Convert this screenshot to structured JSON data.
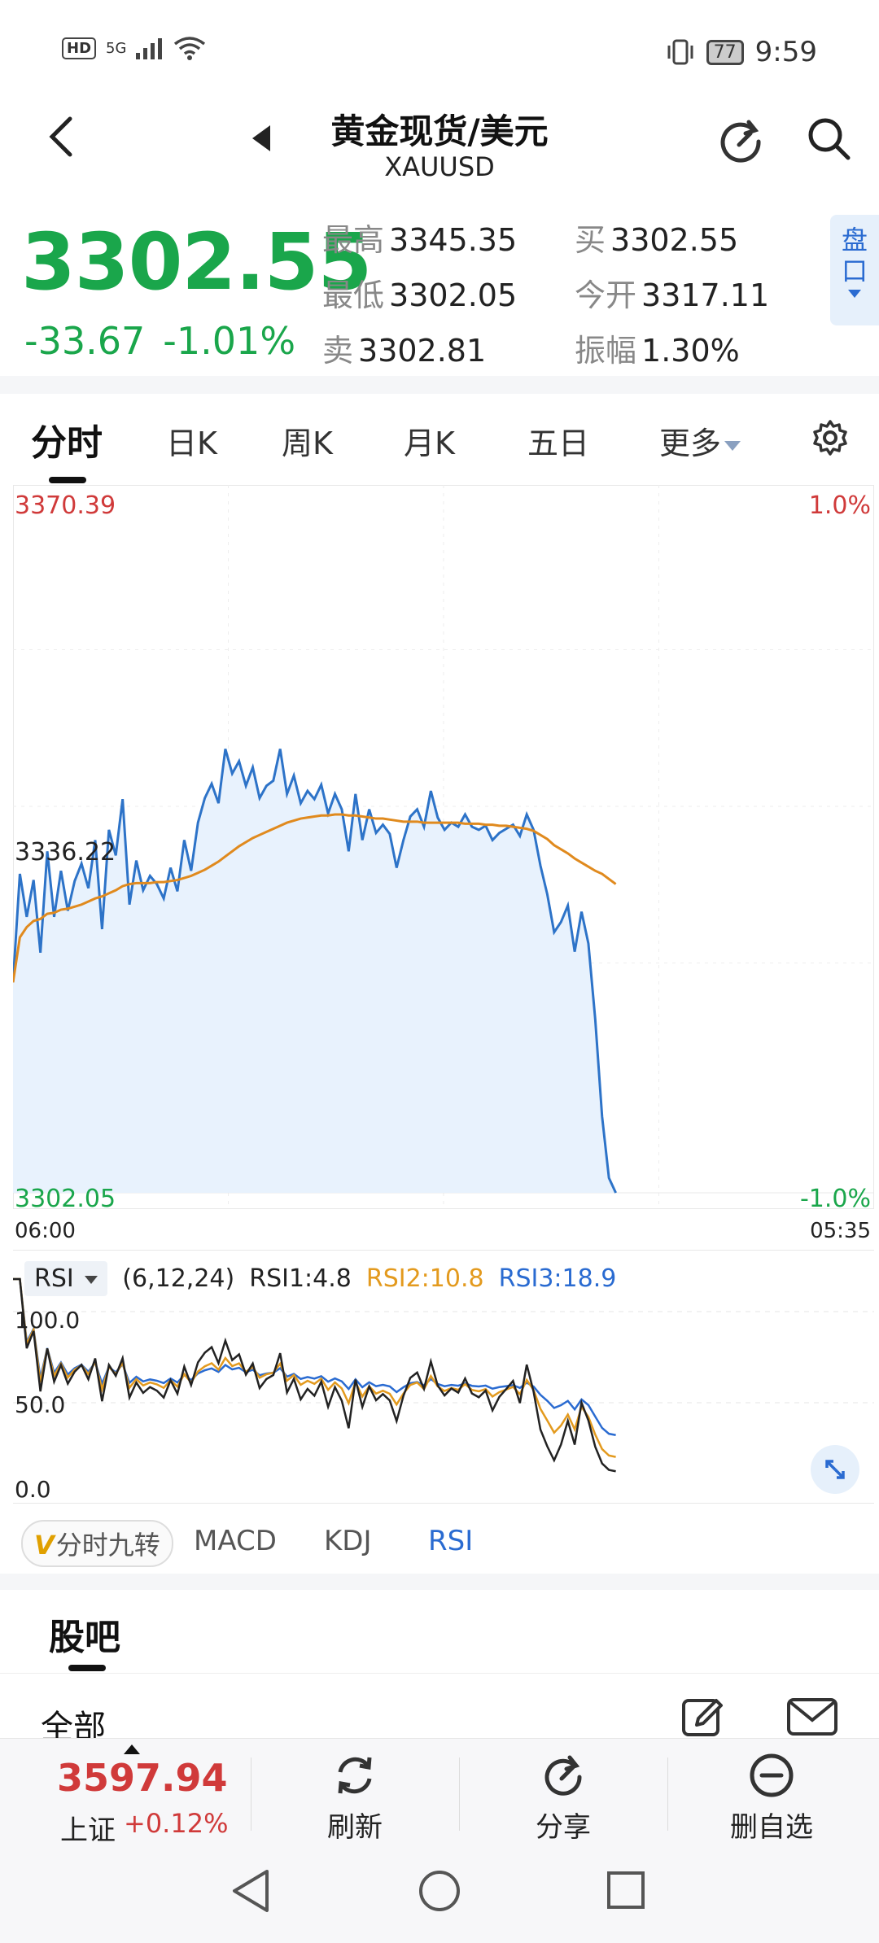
{
  "status_bar": {
    "network": "HD",
    "signal": "5G",
    "battery": "77",
    "time": "9:59"
  },
  "header": {
    "title": "黄金现货/美元",
    "subtitle": "XAUUSD"
  },
  "quote": {
    "price": "3302.55",
    "change": "-33.67",
    "change_pct": "-1.01%",
    "high_label": "最高",
    "high": "3345.35",
    "low_label": "最低",
    "low": "3302.05",
    "sell_label": "卖",
    "sell": "3302.81",
    "buy_label": "买",
    "buy": "3302.55",
    "open_label": "今开",
    "open": "3317.11",
    "amp_label": "振幅",
    "amp": "1.30%",
    "pankou_label": "盘口"
  },
  "tabs": [
    "分时",
    "日K",
    "周K",
    "月K",
    "五日",
    "更多"
  ],
  "chart_data": {
    "type": "line",
    "title": "",
    "y_max_label": "3370.39",
    "y_mid_label": "3336.22",
    "y_min_label": "3302.05",
    "pct_max_label": "1.0%",
    "pct_min_label": "-1.0%",
    "x_start_label": "06:00",
    "x_end_label": "05:35",
    "ylim": [
      3302.05,
      3370.39
    ],
    "series": [
      {
        "values": [
          3322.6,
          3333.2,
          3329.0,
          3332.6,
          3325.5,
          3335.4,
          3329.0,
          3333.5,
          3329.6,
          3332.5,
          3334.2,
          3331.8,
          3336.5,
          3327.8,
          3337.5,
          3335.0,
          3340.5,
          3330.2,
          3334.5,
          3331.6,
          3333.0,
          3332.2,
          3330.8,
          3333.8,
          3331.5,
          3336.5,
          3333.5,
          3338.2,
          3340.6,
          3342.0,
          3340.1,
          3345.4,
          3343.0,
          3344.2,
          3341.8,
          3343.6,
          3340.6,
          3341.8,
          3342.3,
          3345.4,
          3341.0,
          3342.8,
          3340.1,
          3341.3,
          3340.5,
          3341.9,
          3339.1,
          3341.0,
          3339.5,
          3335.4,
          3341.0,
          3336.5,
          3339.5,
          3337.2,
          3338.0,
          3337.1,
          3333.8,
          3336.5,
          3338.8,
          3339.5,
          3337.8,
          3341.3,
          3338.7,
          3337.5,
          3338.2,
          3337.8,
          3339.0,
          3337.8,
          3337.5,
          3337.9,
          3336.5,
          3337.2,
          3337.6,
          3338.0,
          3336.9,
          3339.0,
          3337.5,
          3334.0,
          3331.2,
          3327.5,
          3328.5,
          3330.1,
          3325.6,
          3329.5,
          3326.4,
          3319.0,
          3309.5,
          3303.5,
          3302.05
        ]
      },
      {
        "values": [
          3322.6,
          3327.0,
          3328.0,
          3328.6,
          3328.8,
          3329.3,
          3329.4,
          3329.7,
          3329.8,
          3330.0,
          3330.2,
          3330.5,
          3330.8,
          3331.0,
          3331.3,
          3331.6,
          3332.0,
          3332.2,
          3332.3,
          3332.3,
          3332.3,
          3332.4,
          3332.4,
          3332.5,
          3332.6,
          3332.8,
          3333.0,
          3333.3,
          3333.6,
          3334.0,
          3334.4,
          3334.9,
          3335.4,
          3335.9,
          3336.3,
          3336.7,
          3337.0,
          3337.3,
          3337.6,
          3337.9,
          3338.2,
          3338.4,
          3338.6,
          3338.7,
          3338.8,
          3338.9,
          3338.9,
          3339.0,
          3339.0,
          3338.9,
          3338.9,
          3338.8,
          3338.7,
          3338.6,
          3338.6,
          3338.5,
          3338.4,
          3338.3,
          3338.3,
          3338.3,
          3338.2,
          3338.2,
          3338.2,
          3338.2,
          3338.2,
          3338.2,
          3338.1,
          3338.1,
          3338.1,
          3338.0,
          3338.0,
          3337.9,
          3337.9,
          3337.8,
          3337.7,
          3337.6,
          3337.4,
          3337.0,
          3336.6,
          3336.0,
          3335.6,
          3335.2,
          3334.7,
          3334.3,
          3333.9,
          3333.5,
          3333.2,
          3332.7,
          3332.2
        ]
      }
    ],
    "xlabel": "",
    "ylabel": "",
    "grid": true
  },
  "rsi": {
    "name": "RSI",
    "params": "(6,12,24)",
    "rsi1": "RSI1:4.8",
    "rsi2": "RSI2:10.8",
    "rsi3": "RSI3:18.9",
    "ticks": [
      "100.0",
      "50.0",
      "0.0"
    ],
    "colors": {
      "rsi1": "#222222",
      "rsi2": "#e39a1e",
      "rsi3": "#2a6bd1"
    }
  },
  "indicator_tabs": {
    "v_label": "V",
    "jiuzhuan": "分时九转",
    "macd": "MACD",
    "kdj": "KDJ",
    "rsi": "RSI"
  },
  "community": {
    "title": "股吧",
    "filter": "全部"
  },
  "bottom_bar": {
    "index_value": "3597.94",
    "index_name": "上证",
    "index_pct": "+0.12%",
    "refresh": "刷新",
    "share": "分享",
    "remove": "删自选"
  },
  "colors": {
    "up": "#d03a3a",
    "down": "#1aa64b",
    "accent": "#2a6bd1",
    "avg_line": "#e39a1e"
  }
}
